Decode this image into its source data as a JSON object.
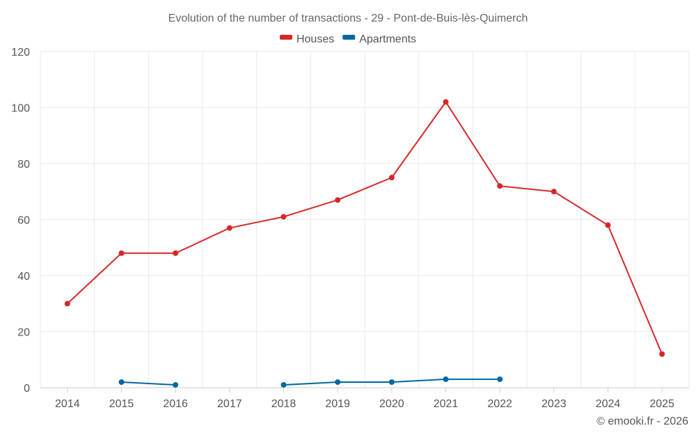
{
  "chart_data": {
    "type": "line",
    "title": "Evolution of the number of transactions - 29 - Pont-de-Buis-lès-Quimerch",
    "xlabel": "",
    "ylabel": "",
    "categories": [
      "2014",
      "2015",
      "2016",
      "2017",
      "2018",
      "2019",
      "2020",
      "2021",
      "2022",
      "2023",
      "2024",
      "2025"
    ],
    "ylim": [
      0,
      120
    ],
    "yticks": [
      0,
      20,
      40,
      60,
      80,
      100,
      120
    ],
    "grid": true,
    "legend_position": "top-center",
    "series": [
      {
        "name": "Houses",
        "color": "#d62728",
        "values": [
          30,
          48,
          48,
          57,
          61,
          67,
          75,
          102,
          72,
          70,
          58,
          12
        ]
      },
      {
        "name": "Apartments",
        "color": "#00679e",
        "values": [
          null,
          2,
          1,
          null,
          1,
          2,
          2,
          3,
          3,
          null,
          null,
          null
        ]
      }
    ]
  },
  "credit": "© emooki.fr - 2026"
}
